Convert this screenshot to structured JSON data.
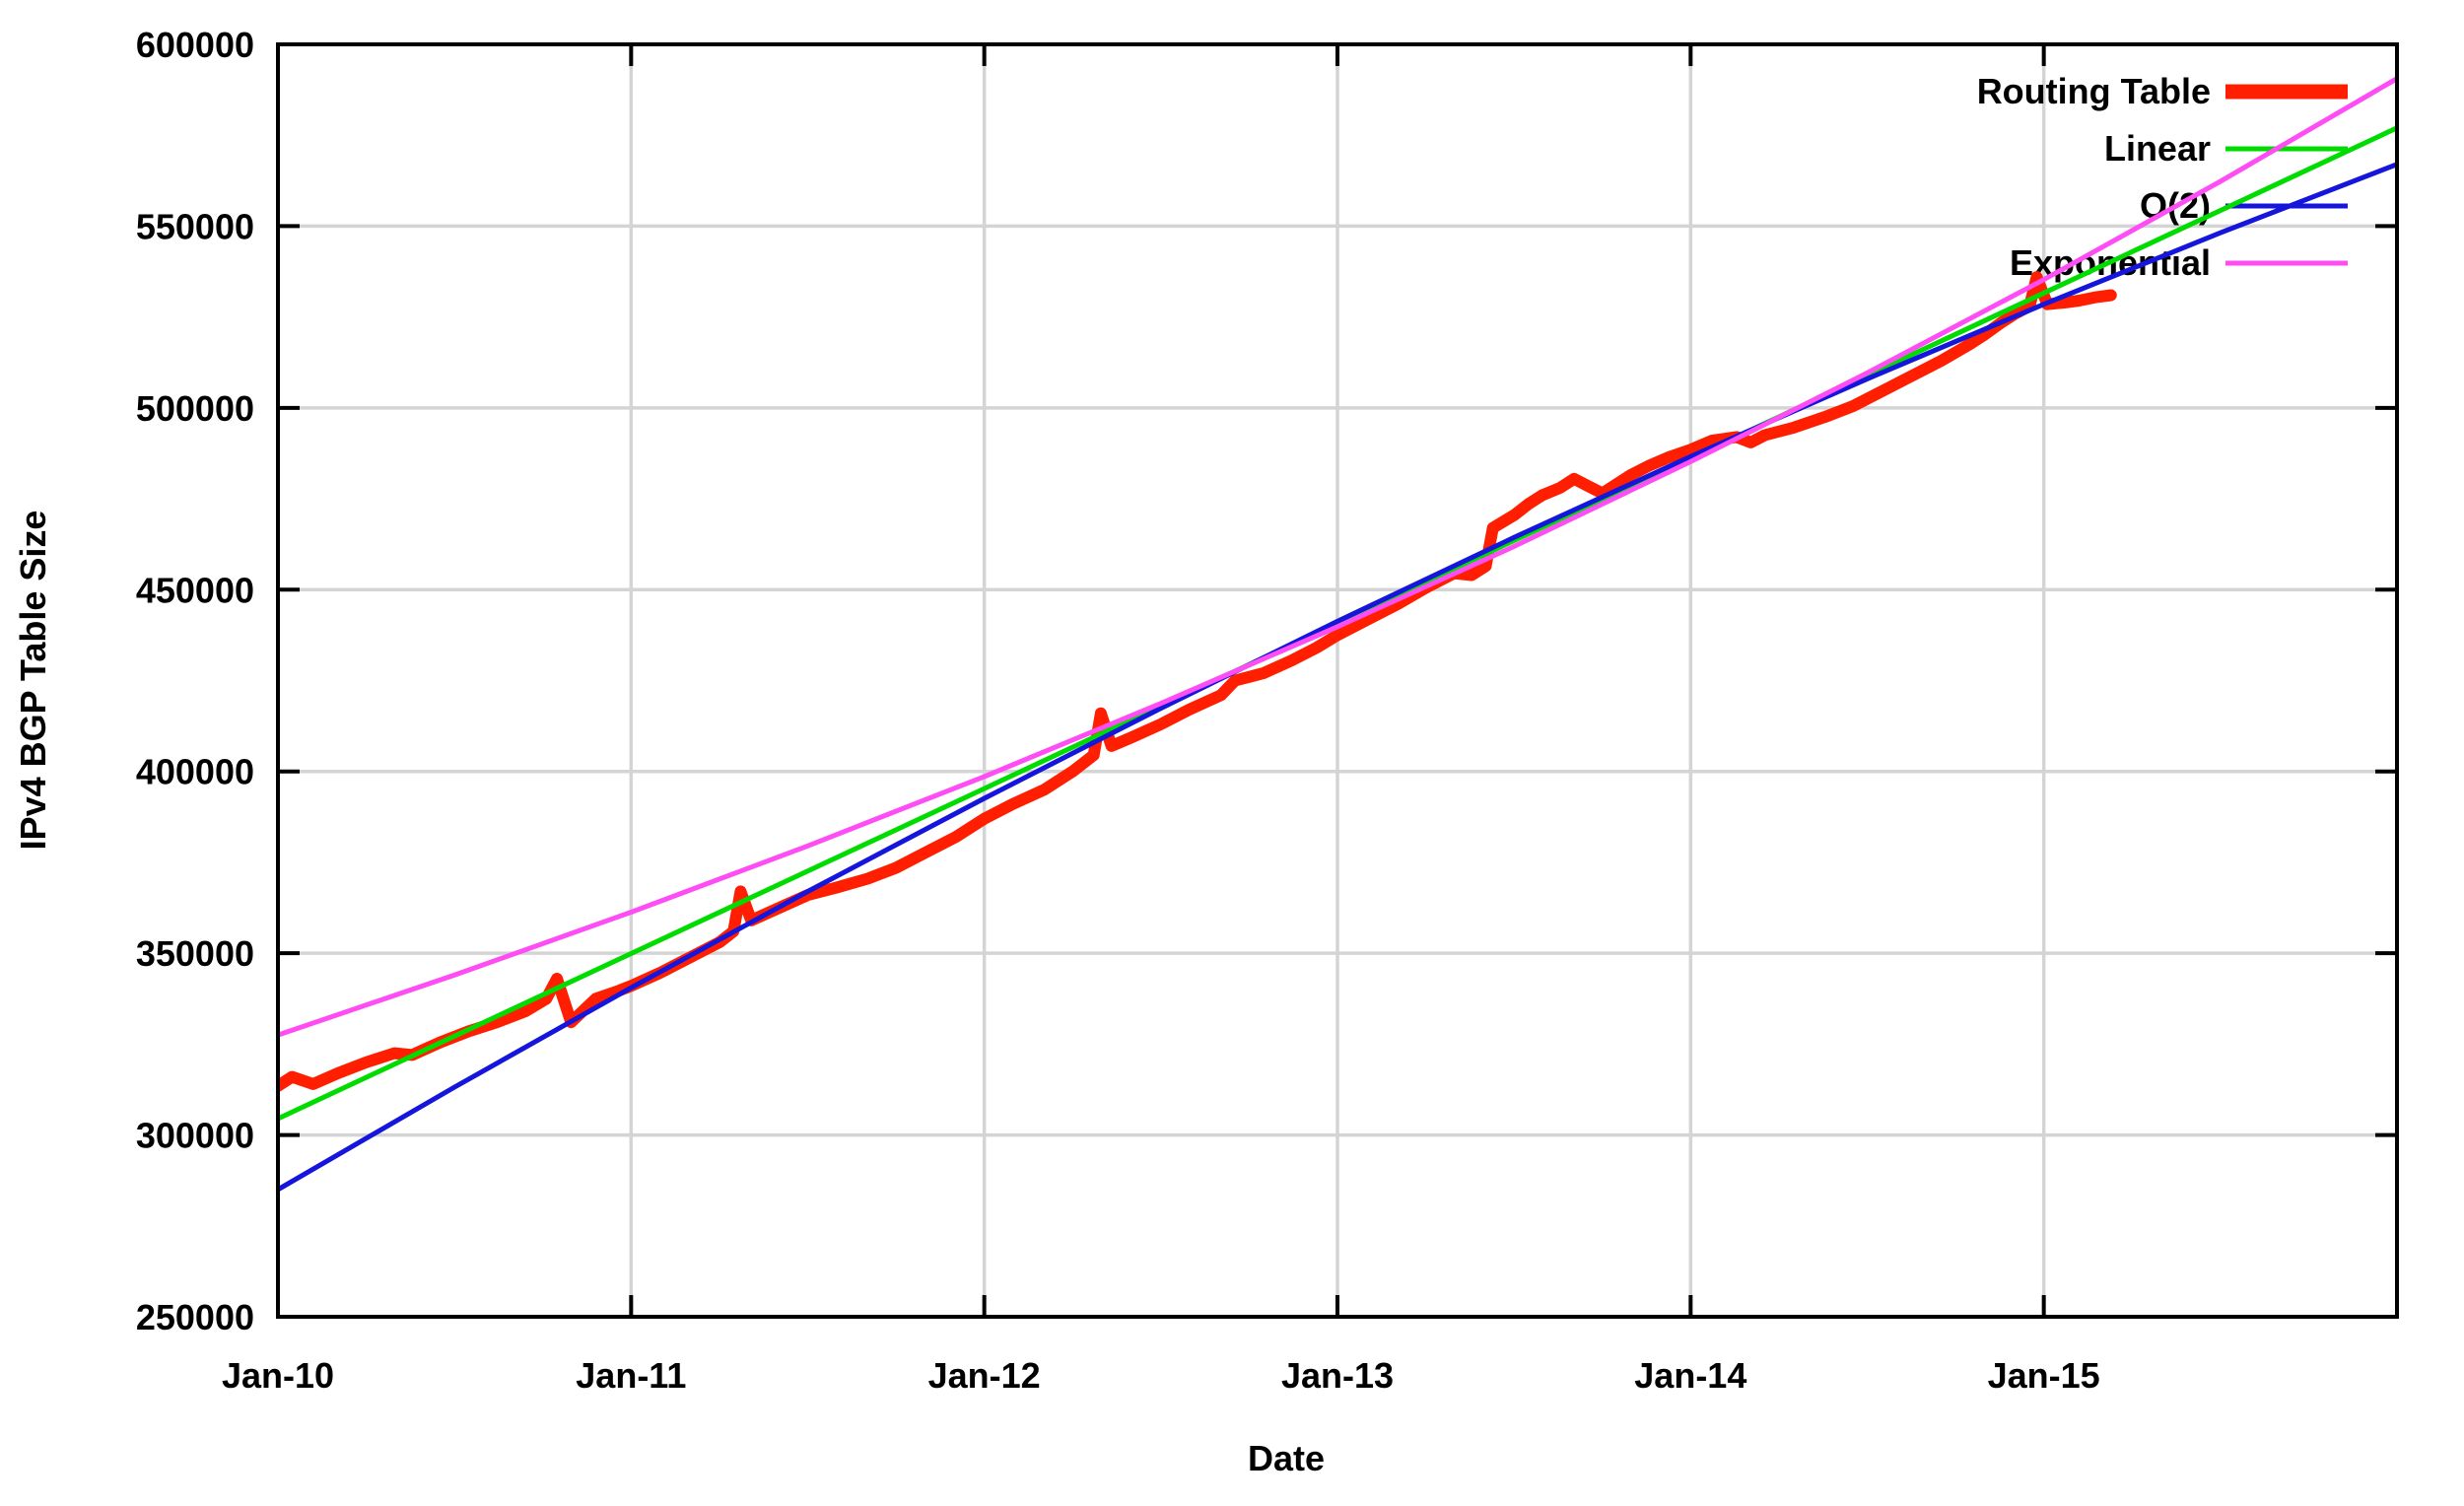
{
  "figure": {
    "background": "#ffffff",
    "border_color": "#000000",
    "grid_color": "#d4d4d4",
    "tick_color": "#000000"
  },
  "chart_data": {
    "type": "line",
    "title": "",
    "xlabel": "Date",
    "ylabel": "IPv4 BGP Table Size",
    "xlim": [
      2010,
      2016
    ],
    "ylim": [
      250000,
      600000
    ],
    "grid": true,
    "legend_position": "top-right-inside",
    "x_ticks": [
      {
        "v": 2010,
        "label": "Jan-10"
      },
      {
        "v": 2011,
        "label": "Jan-11"
      },
      {
        "v": 2012,
        "label": "Jan-12"
      },
      {
        "v": 2013,
        "label": "Jan-13"
      },
      {
        "v": 2014,
        "label": "Jan-14"
      },
      {
        "v": 2015,
        "label": "Jan-15"
      }
    ],
    "y_ticks": [
      {
        "v": 250000,
        "label": "250000"
      },
      {
        "v": 300000,
        "label": "300000"
      },
      {
        "v": 350000,
        "label": "350000"
      },
      {
        "v": 400000,
        "label": "400000"
      },
      {
        "v": 450000,
        "label": "450000"
      },
      {
        "v": 500000,
        "label": "500000"
      },
      {
        "v": 550000,
        "label": "550000"
      },
      {
        "v": 600000,
        "label": "600000"
      }
    ],
    "series": [
      {
        "name": "Routing Table",
        "color": "#ff1f00",
        "line_width": 12,
        "legend_sample_width": 15,
        "points": [
          [
            2010.0,
            313500
          ],
          [
            2010.04,
            316000
          ],
          [
            2010.1,
            314000
          ],
          [
            2010.17,
            317000
          ],
          [
            2010.25,
            320000
          ],
          [
            2010.33,
            322500
          ],
          [
            2010.38,
            322000
          ],
          [
            2010.46,
            325500
          ],
          [
            2010.54,
            328500
          ],
          [
            2010.62,
            331000
          ],
          [
            2010.7,
            334000
          ],
          [
            2010.76,
            337500
          ],
          [
            2010.79,
            343000
          ],
          [
            2010.83,
            331000
          ],
          [
            2010.9,
            337500
          ],
          [
            2010.96,
            339500
          ],
          [
            2011.0,
            341000
          ],
          [
            2011.08,
            344500
          ],
          [
            2011.17,
            349000
          ],
          [
            2011.25,
            353000
          ],
          [
            2011.29,
            356000
          ],
          [
            2011.31,
            367000
          ],
          [
            2011.34,
            359000
          ],
          [
            2011.42,
            362500
          ],
          [
            2011.5,
            366000
          ],
          [
            2011.58,
            368000
          ],
          [
            2011.67,
            370500
          ],
          [
            2011.75,
            373500
          ],
          [
            2011.83,
            377500
          ],
          [
            2011.92,
            382000
          ],
          [
            2012.0,
            387000
          ],
          [
            2012.08,
            391000
          ],
          [
            2012.17,
            395000
          ],
          [
            2012.25,
            400000
          ],
          [
            2012.31,
            404500
          ],
          [
            2012.33,
            416000
          ],
          [
            2012.36,
            407000
          ],
          [
            2012.42,
            409500
          ],
          [
            2012.5,
            413000
          ],
          [
            2012.58,
            417000
          ],
          [
            2012.67,
            421000
          ],
          [
            2012.71,
            425000
          ],
          [
            2012.79,
            427000
          ],
          [
            2012.87,
            430500
          ],
          [
            2012.94,
            434000
          ],
          [
            2013.0,
            437500
          ],
          [
            2013.08,
            441500
          ],
          [
            2013.17,
            446000
          ],
          [
            2013.25,
            450500
          ],
          [
            2013.33,
            454500
          ],
          [
            2013.38,
            454000
          ],
          [
            2013.42,
            456500
          ],
          [
            2013.44,
            467000
          ],
          [
            2013.5,
            470500
          ],
          [
            2013.54,
            473500
          ],
          [
            2013.58,
            476000
          ],
          [
            2013.63,
            478000
          ],
          [
            2013.67,
            480500
          ],
          [
            2013.71,
            478500
          ],
          [
            2013.75,
            476500
          ],
          [
            2013.79,
            479000
          ],
          [
            2013.83,
            481500
          ],
          [
            2013.88,
            484000
          ],
          [
            2013.94,
            486500
          ],
          [
            2014.0,
            488500
          ],
          [
            2014.06,
            491000
          ],
          [
            2014.13,
            492000
          ],
          [
            2014.17,
            490500
          ],
          [
            2014.21,
            492500
          ],
          [
            2014.29,
            494500
          ],
          [
            2014.38,
            497500
          ],
          [
            2014.46,
            500500
          ],
          [
            2014.54,
            504500
          ],
          [
            2014.63,
            509000
          ],
          [
            2014.71,
            513000
          ],
          [
            2014.79,
            517500
          ],
          [
            2014.83,
            520000
          ],
          [
            2014.88,
            523500
          ],
          [
            2014.92,
            526000
          ],
          [
            2014.96,
            528000
          ],
          [
            2014.98,
            536000
          ],
          [
            2015.01,
            528500
          ],
          [
            2015.06,
            529000
          ],
          [
            2015.1,
            529500
          ],
          [
            2015.15,
            530500
          ],
          [
            2015.19,
            531000
          ]
        ]
      },
      {
        "name": "Linear",
        "color": "#00dc00",
        "line_width": 5,
        "legend_sample_width": 5,
        "points": [
          [
            2010.0,
            304500
          ],
          [
            2011.0,
            349900
          ],
          [
            2012.0,
            395300
          ],
          [
            2013.0,
            440800
          ],
          [
            2014.0,
            486200
          ],
          [
            2015.0,
            531600
          ],
          [
            2016.0,
            577000
          ]
        ]
      },
      {
        "name": "O(2)",
        "color": "#1515dc",
        "line_width": 5,
        "legend_sample_width": 5,
        "points": [
          [
            2010.0,
            285000
          ],
          [
            2010.5,
            313175
          ],
          [
            2011.0,
            340500
          ],
          [
            2011.5,
            366975
          ],
          [
            2012.0,
            392600
          ],
          [
            2012.5,
            417375
          ],
          [
            2013.0,
            441300
          ],
          [
            2013.5,
            464375
          ],
          [
            2014.0,
            486600
          ],
          [
            2014.5,
            507975
          ],
          [
            2015.0,
            528500
          ],
          [
            2015.5,
            548175
          ],
          [
            2016.0,
            567000
          ]
        ]
      },
      {
        "name": "Exponential",
        "color": "#ff4df5",
        "line_width": 5,
        "legend_sample_width": 5,
        "points": [
          [
            2010.0,
            327500
          ],
          [
            2010.5,
            344000
          ],
          [
            2011.0,
            361300
          ],
          [
            2011.5,
            379500
          ],
          [
            2012.0,
            398600
          ],
          [
            2012.5,
            418700
          ],
          [
            2013.0,
            439800
          ],
          [
            2013.5,
            461900
          ],
          [
            2014.0,
            485200
          ],
          [
            2014.5,
            509600
          ],
          [
            2015.0,
            535300
          ],
          [
            2015.5,
            562300
          ],
          [
            2016.0,
            590600
          ]
        ]
      }
    ]
  }
}
